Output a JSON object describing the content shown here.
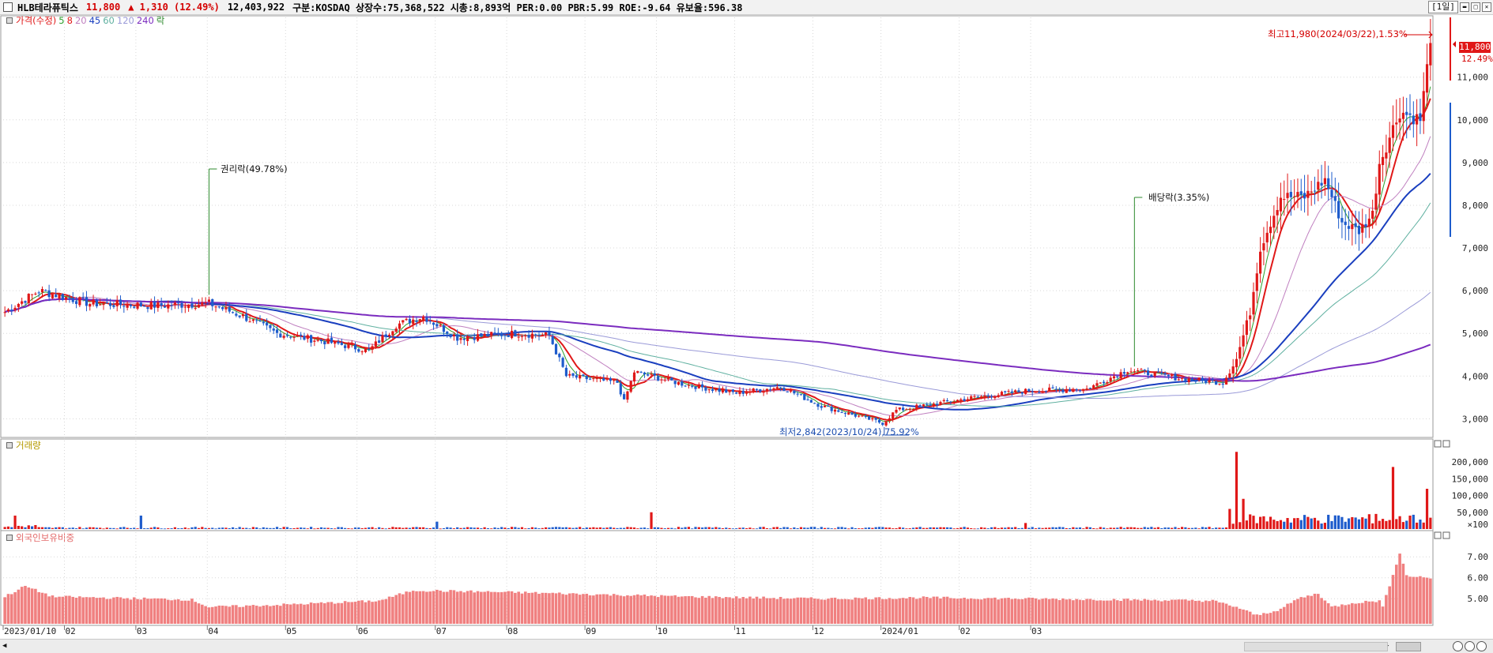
{
  "header": {
    "stock_name": "HLB테라퓨틱스",
    "price": "11,800",
    "change": "▲ 1,310 (12.49%)",
    "volume": "12,403,922",
    "info": "구분:KOSDAQ 상장수:75,368,522 시총:8,893억 PER:0.00 PBR:5.99 ROE:-9.64 유보율:596.38",
    "period": "[1일]"
  },
  "legend_price": {
    "title": "가격(수정)",
    "items": [
      {
        "label": "5",
        "color": "#2ca02c"
      },
      {
        "label": "8",
        "color": "#e01818"
      },
      {
        "label": "20",
        "color": "#c080c0"
      },
      {
        "label": "45",
        "color": "#1a3fbf"
      },
      {
        "label": "60",
        "color": "#5fb0a0"
      },
      {
        "label": "120",
        "color": "#9a9ad8"
      },
      {
        "label": "240",
        "color": "#7b2cbf"
      },
      {
        "label": "락",
        "color": "#2c8a2c"
      }
    ]
  },
  "legend_volume": "거래량",
  "legend_foreign": "외국인보유비중",
  "annotations": {
    "rights": "권리락(49.78%)",
    "dividend": "배당락(3.35%)",
    "high": "최고11,980(2024/03/22),1.53%",
    "low": "최저2,842(2023/10/24),75.92%"
  },
  "last_price_tag": "11,800",
  "last_change_tag": "12.49%",
  "colors": {
    "up": "#e01818",
    "down": "#1e5ccc",
    "grid": "#d8d8d8"
  },
  "chart_data": {
    "type": "candlestick",
    "price_axis": {
      "ticks": [
        "3,000",
        "4,000",
        "5,000",
        "6,000",
        "7,000",
        "8,000",
        "9,000",
        "10,000",
        "11,000"
      ],
      "range": [
        2600,
        12400
      ]
    },
    "volume_axis": {
      "ticks": [
        "200,000",
        "150,000",
        "100,000",
        "50,000",
        "×100"
      ],
      "unit": "×100",
      "range": [
        0,
        240000
      ]
    },
    "foreign_axis": {
      "ticks": [
        "7.00",
        "6.00",
        "5.00"
      ],
      "range": [
        3.8,
        7.8
      ]
    },
    "x_labels": [
      "2023/01/10",
      "02",
      "03",
      "04",
      "05",
      "06",
      "07",
      "08",
      "09",
      "10",
      "11",
      "12",
      "2024/01",
      "02",
      "03"
    ],
    "price_anchors": [
      [
        0,
        5500
      ],
      [
        10,
        6000
      ],
      [
        25,
        5700
      ],
      [
        45,
        5650
      ],
      [
        60,
        5700
      ],
      [
        70,
        5400
      ],
      [
        80,
        5000
      ],
      [
        95,
        4800
      ],
      [
        107,
        4600
      ],
      [
        115,
        5200
      ],
      [
        123,
        5400
      ],
      [
        133,
        4900
      ],
      [
        150,
        5000
      ],
      [
        160,
        4950
      ],
      [
        165,
        4000
      ],
      [
        180,
        3850
      ],
      [
        182,
        3400
      ],
      [
        185,
        4100
      ],
      [
        200,
        3800
      ],
      [
        215,
        3600
      ],
      [
        228,
        3750
      ],
      [
        240,
        3300
      ],
      [
        258,
        2900
      ],
      [
        262,
        3200
      ],
      [
        285,
        3500
      ],
      [
        300,
        3650
      ],
      [
        318,
        3700
      ],
      [
        330,
        4150
      ],
      [
        345,
        3950
      ],
      [
        358,
        3850
      ],
      [
        362,
        4400
      ],
      [
        366,
        5500
      ],
      [
        369,
        7000
      ],
      [
        375,
        8200
      ],
      [
        382,
        8200
      ],
      [
        388,
        8600
      ],
      [
        393,
        7600
      ],
      [
        398,
        7400
      ],
      [
        402,
        7800
      ],
      [
        404,
        9000
      ],
      [
        410,
        10200
      ],
      [
        416,
        10000
      ],
      [
        419,
        11800
      ]
    ],
    "foreign_anchors": [
      [
        0,
        5.1
      ],
      [
        6,
        5.6
      ],
      [
        14,
        5.1
      ],
      [
        55,
        4.95
      ],
      [
        60,
        4.6
      ],
      [
        80,
        4.7
      ],
      [
        110,
        4.9
      ],
      [
        120,
        5.4
      ],
      [
        150,
        5.3
      ],
      [
        200,
        5.1
      ],
      [
        240,
        5.0
      ],
      [
        270,
        5.05
      ],
      [
        300,
        5.0
      ],
      [
        330,
        4.95
      ],
      [
        355,
        4.9
      ],
      [
        362,
        4.6
      ],
      [
        368,
        4.2
      ],
      [
        375,
        4.5
      ],
      [
        380,
        5.0
      ],
      [
        386,
        5.25
      ],
      [
        390,
        4.6
      ],
      [
        396,
        4.8
      ],
      [
        404,
        4.9
      ],
      [
        405,
        4.6
      ],
      [
        410,
        7.2
      ],
      [
        412,
        6.1
      ],
      [
        419,
        6.0
      ]
    ],
    "volume_spikes": [
      [
        3,
        40
      ],
      [
        40,
        40
      ],
      [
        127,
        22
      ],
      [
        190,
        50
      ],
      [
        300,
        18
      ],
      [
        360,
        60
      ],
      [
        362,
        230
      ],
      [
        364,
        90
      ],
      [
        403,
        45
      ],
      [
        408,
        185
      ],
      [
        413,
        40
      ],
      [
        418,
        120
      ]
    ],
    "moving_average_periods": [
      5,
      8,
      20,
      45,
      60,
      120,
      240
    ],
    "events": [
      {
        "label": "권리락(49.78%)",
        "index": 60
      },
      {
        "label": "배당락(3.35%)",
        "index": 332
      }
    ],
    "high": {
      "value": 11980,
      "date": "2024/03/22"
    },
    "low": {
      "value": 2842,
      "date": "2023/10/24"
    }
  }
}
